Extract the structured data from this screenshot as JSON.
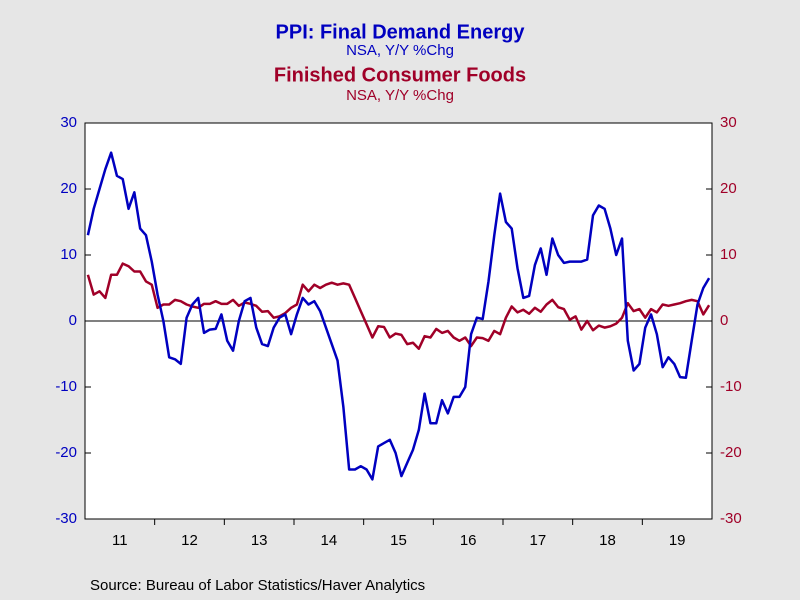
{
  "chart_data": {
    "type": "line",
    "series": [
      {
        "name": "PPI: Final Demand Energy",
        "subtitle": "NSA, Y/Y %Chg",
        "color": "#0000c0",
        "axis": "y",
        "values": [
          13,
          17,
          20,
          23,
          25.5,
          22,
          21.5,
          17,
          19.5,
          14,
          13,
          9,
          4,
          0,
          -5.5,
          -5.8,
          -6.5,
          0.5,
          2.5,
          3.5,
          -1.8,
          -1.3,
          -1.2,
          1,
          -3,
          -4.5,
          0,
          3,
          3.5,
          -1,
          -3.5,
          -3.8,
          -1,
          0.5,
          1,
          -2,
          1,
          3.5,
          2.5,
          3,
          1.5,
          -1,
          -3.5,
          -6,
          -13,
          -22.5,
          -22.5,
          -22,
          -22.5,
          -24,
          -19,
          -18.5,
          -18,
          -20,
          -23.5,
          -21.5,
          -19.5,
          -16.5,
          -11,
          -15.5,
          -15.5,
          -12,
          -14,
          -11.5,
          -11.5,
          -10,
          -2,
          0.5,
          0.3,
          6,
          13,
          19.3,
          15,
          14,
          8,
          3.5,
          3.8,
          8.5,
          11,
          7,
          12.5,
          10,
          8.8,
          9,
          9,
          9,
          9.3,
          16,
          17.5,
          17,
          14,
          10,
          12.5,
          -3,
          -7.5,
          -6.5,
          -1,
          1,
          -2,
          -7,
          -5.5,
          -6.5,
          -8.5,
          -8.6,
          -3,
          2.5,
          5,
          6.5
        ]
      },
      {
        "name": "Finished Consumer Foods",
        "subtitle": "NSA, Y/Y %Chg",
        "color": "#a00028",
        "axis": "y2",
        "values": [
          7,
          4,
          4.5,
          3.5,
          7,
          7,
          8.7,
          8.3,
          7.5,
          7.5,
          6,
          5.5,
          2,
          2.5,
          2.5,
          3.2,
          3,
          2.5,
          2.2,
          2,
          2.6,
          2.6,
          3,
          2.6,
          2.6,
          3.2,
          2.3,
          2.8,
          2.6,
          2.3,
          1.4,
          1.5,
          0.5,
          0.7,
          1.2,
          2,
          2.5,
          5.5,
          4.5,
          5.5,
          5,
          5.5,
          5.8,
          5.5,
          5.7,
          5.5,
          3.5,
          1.5,
          -0.5,
          -2.5,
          -0.8,
          -0.9,
          -2.5,
          -1.9,
          -2.1,
          -3.5,
          -3.3,
          -4.2,
          -2.3,
          -2.5,
          -1.2,
          -1.8,
          -1.5,
          -2.5,
          -3,
          -2.5,
          -3.8,
          -2.5,
          -2.6,
          -3,
          -1.5,
          -2,
          0.5,
          2.2,
          1.3,
          1.7,
          1.1,
          2,
          1.4,
          2.5,
          3.2,
          2.1,
          1.8,
          0.2,
          0.7,
          -1.3,
          0,
          -1.4,
          -0.7,
          -1,
          -0.8,
          -0.4,
          0.5,
          2.7,
          1.5,
          1.8,
          0.5,
          1.8,
          1.3,
          2.5,
          2.3,
          2.5,
          2.7,
          3,
          3.2,
          3,
          1,
          2.4
        ]
      }
    ],
    "categories": [
      null,
      null,
      null,
      null,
      null,
      null,
      "11",
      null,
      null,
      null,
      null,
      null,
      null,
      null,
      null,
      null,
      null,
      null,
      "12",
      null,
      null,
      null,
      null,
      null,
      null,
      null,
      null,
      null,
      null,
      null,
      "13",
      null,
      null,
      null,
      null,
      null,
      null,
      null,
      null,
      null,
      null,
      null,
      "14",
      null,
      null,
      null,
      null,
      null,
      null,
      null,
      null,
      null,
      null,
      null,
      "15",
      null,
      null,
      null,
      null,
      null,
      null,
      null,
      null,
      null,
      null,
      null,
      "16",
      null,
      null,
      null,
      null,
      null,
      null,
      null,
      null,
      null,
      null,
      null,
      "17",
      null,
      null,
      null,
      null,
      null,
      null,
      null,
      null,
      null,
      null,
      null,
      "18",
      null,
      null,
      null,
      null,
      null,
      null,
      null,
      null,
      null,
      null,
      null,
      "19",
      null,
      null,
      null,
      null,
      null
    ],
    "ylim": [
      -30,
      30
    ],
    "yticks": [
      -30,
      -20,
      -10,
      0,
      10,
      20,
      30
    ],
    "y2lim": [
      -30,
      30
    ],
    "y2ticks": [
      -30,
      -20,
      -10,
      0,
      10,
      20,
      30
    ],
    "source": "Source:  Bureau of Labor Statistics/Haver Analytics"
  }
}
